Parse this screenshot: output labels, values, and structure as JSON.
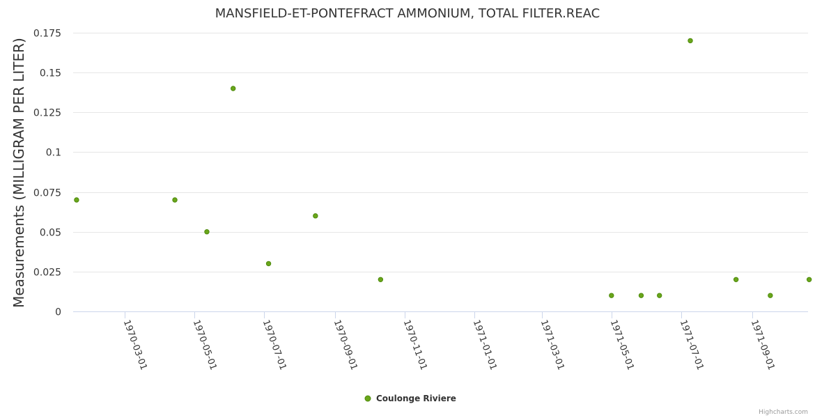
{
  "chart_data": {
    "type": "scatter",
    "title": "MANSFIELD-ET-PONTEFRACT AMMONIUM, TOTAL FILTER.REAC",
    "ylabel": "Measurements (MILLIGRAM PER LITER)",
    "xlabel": "",
    "ylim": [
      0,
      0.175
    ],
    "yticks": [
      0,
      0.025,
      0.05,
      0.075,
      0.1,
      0.125,
      0.15,
      0.175
    ],
    "ytick_labels": [
      "0",
      "0.025",
      "0.05",
      "0.075",
      "0.1",
      "0.125",
      "0.15",
      "0.175"
    ],
    "xlim": [
      "1970-01-15",
      "1971-10-20"
    ],
    "xticks": [
      "1970-03-01",
      "1970-05-01",
      "1970-07-01",
      "1970-09-01",
      "1970-11-01",
      "1971-01-01",
      "1971-03-01",
      "1971-05-01",
      "1971-07-01",
      "1971-09-01"
    ],
    "grid": true,
    "legend_position": "bottom-center",
    "series": [
      {
        "name": "Coulonge Riviere",
        "color": "#6aa61b",
        "points": [
          {
            "x": "1970-01-18",
            "y": 0.07
          },
          {
            "x": "1970-04-14",
            "y": 0.07
          },
          {
            "x": "1970-05-12",
            "y": 0.05
          },
          {
            "x": "1970-06-04",
            "y": 0.14
          },
          {
            "x": "1970-07-05",
            "y": 0.03
          },
          {
            "x": "1970-08-15",
            "y": 0.06
          },
          {
            "x": "1970-10-11",
            "y": 0.02
          },
          {
            "x": "1971-05-01",
            "y": 0.01
          },
          {
            "x": "1971-05-27",
            "y": 0.01
          },
          {
            "x": "1971-06-12",
            "y": 0.01
          },
          {
            "x": "1971-07-09",
            "y": 0.17
          },
          {
            "x": "1971-08-18",
            "y": 0.02
          },
          {
            "x": "1971-09-17",
            "y": 0.01
          },
          {
            "x": "1971-10-21",
            "y": 0.02
          }
        ]
      }
    ]
  },
  "credits": "Highcharts.com"
}
